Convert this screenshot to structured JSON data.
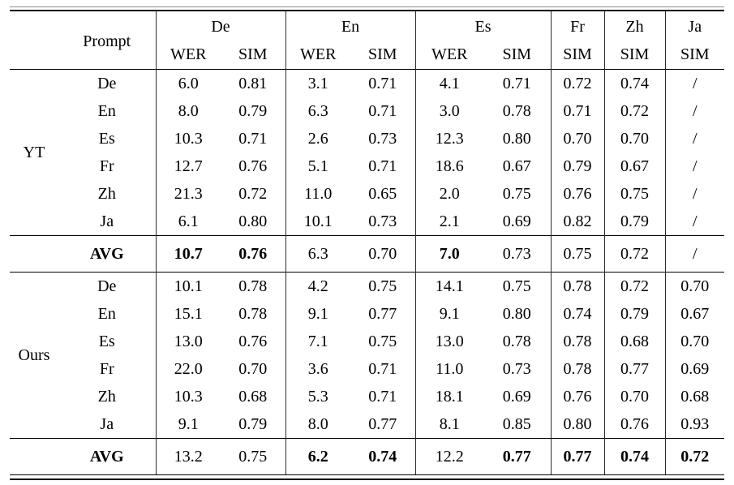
{
  "page": {
    "background": "#ffffff",
    "text_color": "#000000",
    "rule_color": "#000000"
  },
  "table": {
    "header": {
      "prompt_label": "Prompt",
      "groups": [
        {
          "label": "De",
          "metrics": [
            "WER",
            "SIM"
          ]
        },
        {
          "label": "En",
          "metrics": [
            "WER",
            "SIM"
          ]
        },
        {
          "label": "Es",
          "metrics": [
            "WER",
            "SIM"
          ]
        },
        {
          "label": "Fr",
          "metrics": [
            "SIM"
          ]
        },
        {
          "label": "Zh",
          "metrics": [
            "SIM"
          ]
        },
        {
          "label": "Ja",
          "metrics": [
            "SIM"
          ]
        }
      ]
    },
    "columns": [
      "De WER",
      "De SIM",
      "En WER",
      "En SIM",
      "Es WER",
      "Es SIM",
      "Fr SIM",
      "Zh SIM",
      "Ja SIM"
    ],
    "sections": [
      {
        "group_label": "YT",
        "rows": [
          {
            "prompt": "De",
            "values": [
              "6.0",
              "0.81",
              "3.1",
              "0.71",
              "4.1",
              "0.71",
              "0.72",
              "0.74",
              "/"
            ],
            "bold": []
          },
          {
            "prompt": "En",
            "values": [
              "8.0",
              "0.79",
              "6.3",
              "0.71",
              "3.0",
              "0.78",
              "0.71",
              "0.72",
              "/"
            ],
            "bold": []
          },
          {
            "prompt": "Es",
            "values": [
              "10.3",
              "0.71",
              "2.6",
              "0.73",
              "12.3",
              "0.80",
              "0.70",
              "0.70",
              "/"
            ],
            "bold": []
          },
          {
            "prompt": "Fr",
            "values": [
              "12.7",
              "0.76",
              "5.1",
              "0.71",
              "18.6",
              "0.67",
              "0.79",
              "0.67",
              "/"
            ],
            "bold": []
          },
          {
            "prompt": "Zh",
            "values": [
              "21.3",
              "0.72",
              "11.0",
              "0.65",
              "2.0",
              "0.75",
              "0.76",
              "0.75",
              "/"
            ],
            "bold": []
          },
          {
            "prompt": "Ja",
            "values": [
              "6.1",
              "0.80",
              "10.1",
              "0.73",
              "2.1",
              "0.69",
              "0.82",
              "0.79",
              "/"
            ],
            "bold": []
          }
        ],
        "avg": {
          "label": "AVG",
          "values": [
            "10.7",
            "0.76",
            "6.3",
            "0.70",
            "7.0",
            "0.73",
            "0.75",
            "0.72",
            "/"
          ],
          "bold": [
            0,
            1,
            4
          ]
        }
      },
      {
        "group_label": "Ours",
        "rows": [
          {
            "prompt": "De",
            "values": [
              "10.1",
              "0.78",
              "4.2",
              "0.75",
              "14.1",
              "0.75",
              "0.78",
              "0.72",
              "0.70"
            ],
            "bold": []
          },
          {
            "prompt": "En",
            "values": [
              "15.1",
              "0.78",
              "9.1",
              "0.77",
              "9.1",
              "0.80",
              "0.74",
              "0.79",
              "0.67"
            ],
            "bold": []
          },
          {
            "prompt": "Es",
            "values": [
              "13.0",
              "0.76",
              "7.1",
              "0.75",
              "13.0",
              "0.78",
              "0.78",
              "0.68",
              "0.70"
            ],
            "bold": []
          },
          {
            "prompt": "Fr",
            "values": [
              "22.0",
              "0.70",
              "3.6",
              "0.71",
              "11.0",
              "0.73",
              "0.78",
              "0.77",
              "0.69"
            ],
            "bold": []
          },
          {
            "prompt": "Zh",
            "values": [
              "10.3",
              "0.68",
              "5.3",
              "0.71",
              "18.1",
              "0.69",
              "0.76",
              "0.70",
              "0.68"
            ],
            "bold": []
          },
          {
            "prompt": "Ja",
            "values": [
              "9.1",
              "0.79",
              "8.0",
              "0.77",
              "8.1",
              "0.85",
              "0.80",
              "0.76",
              "0.93"
            ],
            "bold": []
          }
        ],
        "avg": {
          "label": "AVG",
          "values": [
            "13.2",
            "0.75",
            "6.2",
            "0.74",
            "12.2",
            "0.77",
            "0.77",
            "0.74",
            "0.72"
          ],
          "bold": [
            2,
            3,
            5,
            6,
            7,
            8
          ]
        }
      }
    ]
  }
}
